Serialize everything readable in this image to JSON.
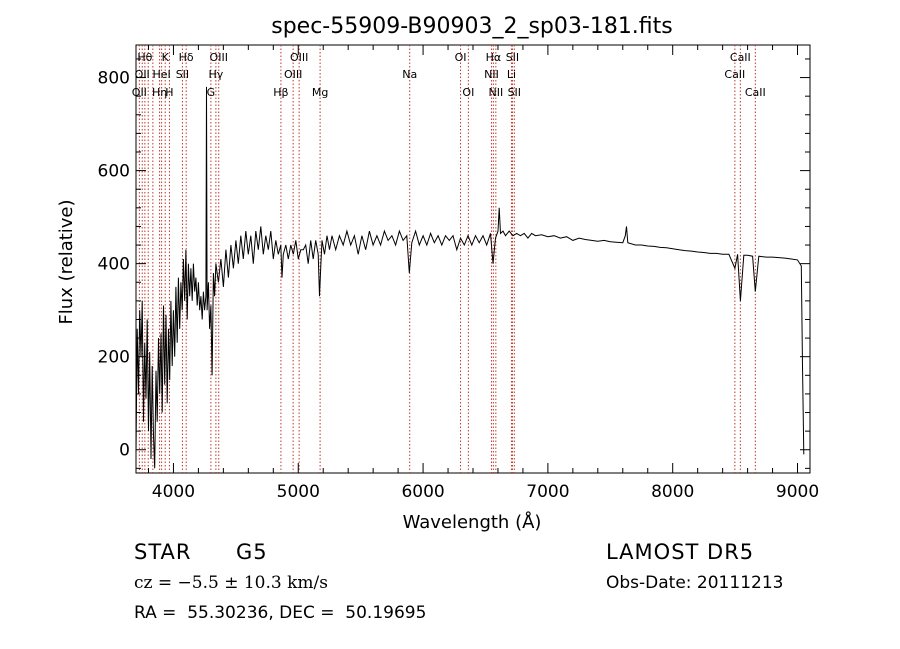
{
  "chart_data": {
    "type": "line",
    "title": "spec-55909-B90903_2_sp03-181.fits",
    "xlabel": "Wavelength (Å)",
    "ylabel": "Flux (relative)",
    "xlim": [
      3700,
      9100
    ],
    "ylim": [
      -50,
      870
    ],
    "xticks": [
      4000,
      5000,
      6000,
      7000,
      8000,
      9000
    ],
    "yticks": [
      0,
      200,
      400,
      600,
      800
    ],
    "grid": false,
    "series": [
      {
        "color": "#000000",
        "points": [
          [
            3700,
            -10
          ],
          [
            3710,
            260
          ],
          [
            3720,
            120
          ],
          [
            3730,
            300
          ],
          [
            3740,
            200
          ],
          [
            3750,
            320
          ],
          [
            3760,
            60
          ],
          [
            3770,
            230
          ],
          [
            3780,
            110
          ],
          [
            3790,
            280
          ],
          [
            3800,
            40
          ],
          [
            3810,
            210
          ],
          [
            3820,
            -20
          ],
          [
            3830,
            180
          ],
          [
            3840,
            30
          ],
          [
            3850,
            -40
          ],
          [
            3860,
            170
          ],
          [
            3870,
            60
          ],
          [
            3880,
            240
          ],
          [
            3890,
            120
          ],
          [
            3900,
            250
          ],
          [
            3910,
            80
          ],
          [
            3920,
            310
          ],
          [
            3930,
            140
          ],
          [
            3940,
            290
          ],
          [
            3950,
            100
          ],
          [
            3960,
            260
          ],
          [
            3970,
            150
          ],
          [
            3980,
            320
          ],
          [
            3990,
            180
          ],
          [
            4000,
            300
          ],
          [
            4010,
            200
          ],
          [
            4020,
            350
          ],
          [
            4030,
            230
          ],
          [
            4040,
            370
          ],
          [
            4050,
            260
          ],
          [
            4060,
            360
          ],
          [
            4070,
            300
          ],
          [
            4080,
            410
          ],
          [
            4090,
            320
          ],
          [
            4100,
            430
          ],
          [
            4110,
            280
          ],
          [
            4120,
            400
          ],
          [
            4130,
            330
          ],
          [
            4140,
            390
          ],
          [
            4150,
            320
          ],
          [
            4160,
            400
          ],
          [
            4170,
            340
          ],
          [
            4180,
            370
          ],
          [
            4190,
            310
          ],
          [
            4200,
            360
          ],
          [
            4210,
            300
          ],
          [
            4220,
            330
          ],
          [
            4230,
            280
          ],
          [
            4240,
            340
          ],
          [
            4250,
            300
          ],
          [
            4260,
            330
          ],
          [
            4265,
            780
          ],
          [
            4270,
            300
          ],
          [
            4280,
            360
          ],
          [
            4290,
            260
          ],
          [
            4300,
            310
          ],
          [
            4310,
            160
          ],
          [
            4320,
            380
          ],
          [
            4330,
            330
          ],
          [
            4340,
            400
          ],
          [
            4360,
            360
          ],
          [
            4380,
            410
          ],
          [
            4400,
            350
          ],
          [
            4420,
            430
          ],
          [
            4440,
            370
          ],
          [
            4460,
            440
          ],
          [
            4480,
            390
          ],
          [
            4500,
            450
          ],
          [
            4520,
            400
          ],
          [
            4540,
            460
          ],
          [
            4560,
            410
          ],
          [
            4580,
            470
          ],
          [
            4600,
            420
          ],
          [
            4620,
            460
          ],
          [
            4640,
            400
          ],
          [
            4660,
            470
          ],
          [
            4680,
            430
          ],
          [
            4700,
            480
          ],
          [
            4720,
            420
          ],
          [
            4740,
            460
          ],
          [
            4760,
            430
          ],
          [
            4780,
            470
          ],
          [
            4800,
            410
          ],
          [
            4820,
            450
          ],
          [
            4840,
            420
          ],
          [
            4860,
            440
          ],
          [
            4870,
            370
          ],
          [
            4880,
            420
          ],
          [
            4900,
            440
          ],
          [
            4920,
            410
          ],
          [
            4940,
            440
          ],
          [
            4960,
            420
          ],
          [
            4980,
            450
          ],
          [
            5000,
            410
          ],
          [
            5020,
            430
          ],
          [
            5040,
            430
          ],
          [
            5060,
            440
          ],
          [
            5080,
            400
          ],
          [
            5100,
            450
          ],
          [
            5120,
            410
          ],
          [
            5140,
            450
          ],
          [
            5160,
            420
          ],
          [
            5170,
            330
          ],
          [
            5180,
            390
          ],
          [
            5190,
            450
          ],
          [
            5210,
            420
          ],
          [
            5230,
            460
          ],
          [
            5250,
            430
          ],
          [
            5270,
            460
          ],
          [
            5300,
            430
          ],
          [
            5330,
            460
          ],
          [
            5360,
            440
          ],
          [
            5390,
            470
          ],
          [
            5420,
            440
          ],
          [
            5450,
            460
          ],
          [
            5480,
            420
          ],
          [
            5510,
            460
          ],
          [
            5540,
            430
          ],
          [
            5570,
            470
          ],
          [
            5600,
            440
          ],
          [
            5630,
            460
          ],
          [
            5660,
            440
          ],
          [
            5690,
            470
          ],
          [
            5720,
            450
          ],
          [
            5750,
            460
          ],
          [
            5780,
            440
          ],
          [
            5810,
            470
          ],
          [
            5840,
            450
          ],
          [
            5870,
            460
          ],
          [
            5890,
            380
          ],
          [
            5910,
            445
          ],
          [
            5940,
            470
          ],
          [
            5970,
            440
          ],
          [
            6000,
            460
          ],
          [
            6030,
            440
          ],
          [
            6060,
            465
          ],
          [
            6090,
            445
          ],
          [
            6120,
            460
          ],
          [
            6150,
            440
          ],
          [
            6180,
            460
          ],
          [
            6210,
            450
          ],
          [
            6240,
            460
          ],
          [
            6270,
            430
          ],
          [
            6300,
            455
          ],
          [
            6330,
            440
          ],
          [
            6360,
            460
          ],
          [
            6390,
            440
          ],
          [
            6420,
            460
          ],
          [
            6450,
            445
          ],
          [
            6480,
            460
          ],
          [
            6510,
            440
          ],
          [
            6540,
            465
          ],
          [
            6560,
            400
          ],
          [
            6580,
            455
          ],
          [
            6600,
            470
          ],
          [
            6610,
            520
          ],
          [
            6620,
            465
          ],
          [
            6640,
            470
          ],
          [
            6660,
            460
          ],
          [
            6690,
            470
          ],
          [
            6720,
            460
          ],
          [
            6750,
            465
          ],
          [
            6780,
            460
          ],
          [
            6810,
            465
          ],
          [
            6840,
            455
          ],
          [
            6870,
            465
          ],
          [
            6900,
            460
          ],
          [
            6950,
            462
          ],
          [
            7000,
            458
          ],
          [
            7050,
            460
          ],
          [
            7100,
            455
          ],
          [
            7150,
            458
          ],
          [
            7200,
            450
          ],
          [
            7250,
            455
          ],
          [
            7300,
            452
          ],
          [
            7350,
            450
          ],
          [
            7400,
            448
          ],
          [
            7450,
            450
          ],
          [
            7500,
            447
          ],
          [
            7550,
            446
          ],
          [
            7600,
            445
          ],
          [
            7620,
            460
          ],
          [
            7630,
            480
          ],
          [
            7640,
            445
          ],
          [
            7700,
            440
          ],
          [
            7750,
            440
          ],
          [
            7800,
            438
          ],
          [
            7850,
            437
          ],
          [
            7900,
            435
          ],
          [
            7950,
            434
          ],
          [
            8000,
            432
          ],
          [
            8050,
            430
          ],
          [
            8100,
            428
          ],
          [
            8150,
            427
          ],
          [
            8200,
            425
          ],
          [
            8250,
            424
          ],
          [
            8300,
            422
          ],
          [
            8350,
            422
          ],
          [
            8400,
            420
          ],
          [
            8450,
            420
          ],
          [
            8498,
            390
          ],
          [
            8520,
            420
          ],
          [
            8542,
            320
          ],
          [
            8570,
            418
          ],
          [
            8600,
            418
          ],
          [
            8640,
            416
          ],
          [
            8662,
            340
          ],
          [
            8690,
            416
          ],
          [
            8750,
            414
          ],
          [
            8800,
            414
          ],
          [
            8850,
            413
          ],
          [
            8900,
            412
          ],
          [
            8950,
            410
          ],
          [
            9000,
            408
          ],
          [
            9030,
            395
          ],
          [
            9040,
            180
          ],
          [
            9050,
            -10
          ]
        ]
      }
    ],
    "lines": [
      {
        "wl": 3727,
        "label": "OII",
        "row": 3
      },
      {
        "wl": 3750,
        "label": "OII",
        "row": 2
      },
      {
        "wl": 3771,
        "label": "Hθ",
        "row": 1
      },
      {
        "wl": 3798,
        "label": "",
        "row": 0
      },
      {
        "wl": 3835,
        "label": "",
        "row": 0
      },
      {
        "wl": 3889,
        "label": "Hη",
        "row": 3
      },
      {
        "wl": 3905,
        "label": "HeI",
        "row": 2
      },
      {
        "wl": 3934,
        "label": "K",
        "row": 1
      },
      {
        "wl": 3968,
        "label": "H",
        "row": 3
      },
      {
        "wl": 4072,
        "label": "SII",
        "row": 2
      },
      {
        "wl": 4102,
        "label": "Hδ",
        "row": 1
      },
      {
        "wl": 4300,
        "label": "G",
        "row": 3
      },
      {
        "wl": 4340,
        "label": "Hγ",
        "row": 2
      },
      {
        "wl": 4363,
        "label": "OIII",
        "row": 1
      },
      {
        "wl": 4861,
        "label": "Hβ",
        "row": 3
      },
      {
        "wl": 4959,
        "label": "OIII",
        "row": 2
      },
      {
        "wl": 5007,
        "label": "OIII",
        "row": 1
      },
      {
        "wl": 5175,
        "label": "Mg",
        "row": 3
      },
      {
        "wl": 5893,
        "label": "Na",
        "row": 2
      },
      {
        "wl": 6300,
        "label": "OI",
        "row": 1
      },
      {
        "wl": 6363,
        "label": "OI",
        "row": 3
      },
      {
        "wl": 6548,
        "label": "NII",
        "row": 2
      },
      {
        "wl": 6563,
        "label": "Hα",
        "row": 1
      },
      {
        "wl": 6583,
        "label": "NII",
        "row": 3
      },
      {
        "wl": 6708,
        "label": "Li",
        "row": 2
      },
      {
        "wl": 6716,
        "label": "SII",
        "row": 1
      },
      {
        "wl": 6731,
        "label": "SII",
        "row": 3
      },
      {
        "wl": 8498,
        "label": "CaII",
        "row": 2
      },
      {
        "wl": 8542,
        "label": "CaII",
        "row": 1
      },
      {
        "wl": 8662,
        "label": "CaII",
        "row": 3
      }
    ]
  },
  "info": {
    "class_label": "STAR",
    "subclass": "G5",
    "survey": "LAMOST DR5",
    "redshift": "cz = −5.5 ± 10.3 km/s",
    "obs_date": "Obs-Date: 20111213",
    "coords": "RA =  55.30236, DEC =  50.19695"
  }
}
